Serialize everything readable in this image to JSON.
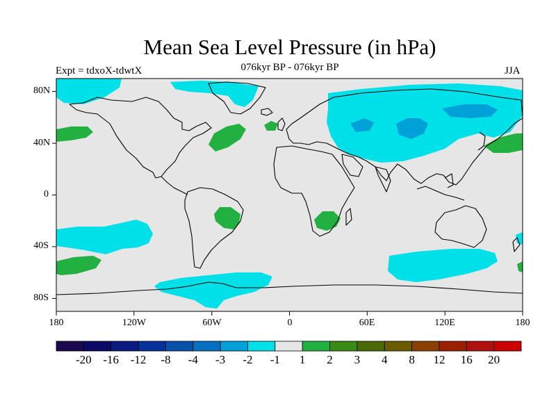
{
  "title": "Mean Sea Level Pressure (in hPa)",
  "subtitle": "076kyr BP - 076kyr BP",
  "experiment": "Expt = tdxoX-tdwtX",
  "season": "JJA",
  "map": {
    "projection": "cylindrical equidistant",
    "lon_range": [
      -180,
      180
    ],
    "lat_range": [
      -90,
      90
    ],
    "background_color": "#e6e6e6",
    "y_tick_labels": [
      "80N",
      "40N",
      "0",
      "40S",
      "80S"
    ],
    "x_tick_labels": [
      "180",
      "120W",
      "60W",
      "0",
      "60E",
      "120E",
      "180"
    ]
  },
  "colorbar": {
    "labels": [
      "-20",
      "-16",
      "-12",
      "-8",
      "-4",
      "-3",
      "-2",
      "-1",
      "1",
      "2",
      "3",
      "4",
      "8",
      "12",
      "16",
      "20"
    ],
    "colors": [
      "#1a0a4d",
      "#0a0a66",
      "#0a1a80",
      "#08309a",
      "#0850a8",
      "#0870c0",
      "#00a0d8",
      "#00e0e8",
      "#e6e6e6",
      "#22b040",
      "#3a8a18",
      "#4a6a08",
      "#6a5a00",
      "#8a4000",
      "#9a2000",
      "#b01010",
      "#cc0000"
    ]
  },
  "chart_data": {
    "type": "heatmap",
    "variable": "Mean Sea Level Pressure difference",
    "units": "hPa",
    "levels": [
      -20,
      -16,
      -12,
      -8,
      -4,
      -3,
      -2,
      -1,
      1,
      2,
      3,
      4,
      8,
      12,
      16,
      20
    ]
  }
}
